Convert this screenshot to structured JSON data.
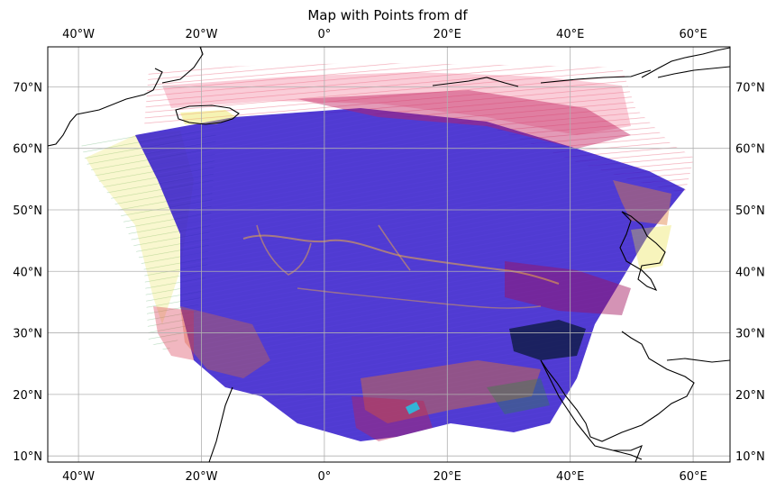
{
  "title": "Map with Points from df",
  "map": {
    "projection": "PlateCarree",
    "extent": {
      "lon_min": -45,
      "lon_max": 66,
      "lat_min": 9,
      "lat_max": 76.5
    },
    "gridlines": true,
    "lon_ticks": [
      {
        "value": -40,
        "label": "40°W"
      },
      {
        "value": -20,
        "label": "20°W"
      },
      {
        "value": 0,
        "label": "0°"
      },
      {
        "value": 20,
        "label": "20°E"
      },
      {
        "value": 40,
        "label": "40°E"
      },
      {
        "value": 60,
        "label": "60°E"
      }
    ],
    "lat_ticks": [
      {
        "value": 70,
        "label": "70°N"
      },
      {
        "value": 60,
        "label": "60°N"
      },
      {
        "value": 50,
        "label": "50°N"
      },
      {
        "value": 40,
        "label": "40°N"
      },
      {
        "value": 30,
        "label": "30°N"
      },
      {
        "value": 20,
        "label": "20°N"
      },
      {
        "value": 10,
        "label": "10°N"
      }
    ],
    "coastline_color": "#000000",
    "grid_color": "#b0b0b0"
  },
  "colors": {
    "dominant": "#2a10c8",
    "swath_red": "#d8304a",
    "swath_pink": "#f070a0",
    "swath_orange": "#e07030",
    "swath_yellow": "#e8e040",
    "swath_green": "#2a8a3a",
    "swath_dark": "#0a1a3a",
    "swath_cyan": "#20c8e8"
  }
}
